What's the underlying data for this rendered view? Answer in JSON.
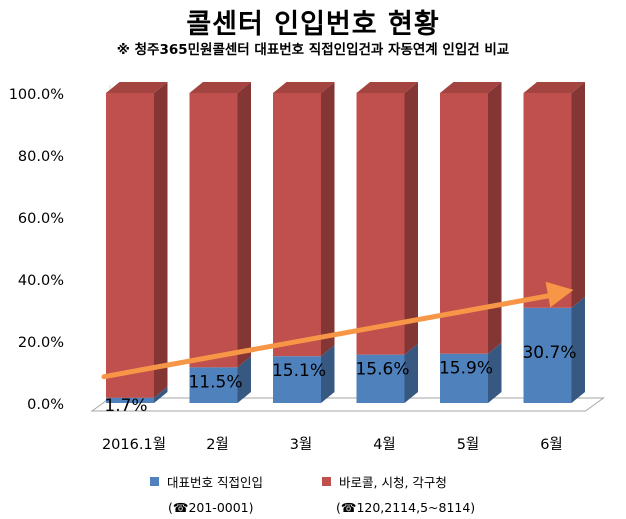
{
  "title": "콜센터 인입번호 현황",
  "subtitle": "※ 청주365민원콜센터 대표번호 직접인입건과 자동연계 인입건 비교",
  "legend": [
    {
      "label": "대표번호 직접인입",
      "note": "(☎201-0001)",
      "color": "#4f81bd"
    },
    {
      "label": "바로콜, 시청, 각구청",
      "note": "(☎120,2114,5~8114)",
      "color": "#c0504d"
    }
  ],
  "chart_data": {
    "type": "bar",
    "stacked": true,
    "percent_stacked": true,
    "categories": [
      "2016.1월",
      "2월",
      "3월",
      "4월",
      "5월",
      "6월"
    ],
    "series": [
      {
        "name": "대표번호 직접인입",
        "values": [
          1.7,
          11.5,
          15.1,
          15.6,
          15.9,
          30.7
        ],
        "color": "#4f81bd"
      },
      {
        "name": "바로콜, 시청, 각구청",
        "values": [
          98.3,
          88.5,
          84.9,
          84.4,
          84.1,
          69.3
        ],
        "color": "#c0504d"
      }
    ],
    "data_labels": [
      "1.7%",
      "11.5%",
      "15.1%",
      "15.6%",
      "15.9%",
      "30.7%"
    ],
    "yticks": [
      "0.0%",
      "20.0%",
      "40.0%",
      "60.0%",
      "80.0%",
      "100.0%"
    ],
    "ylim": [
      0,
      100
    ],
    "legend_position": "bottom",
    "trend_arrow": {
      "color": "#f79646",
      "from": "2016.1월",
      "to": "6월"
    },
    "grid": false
  }
}
